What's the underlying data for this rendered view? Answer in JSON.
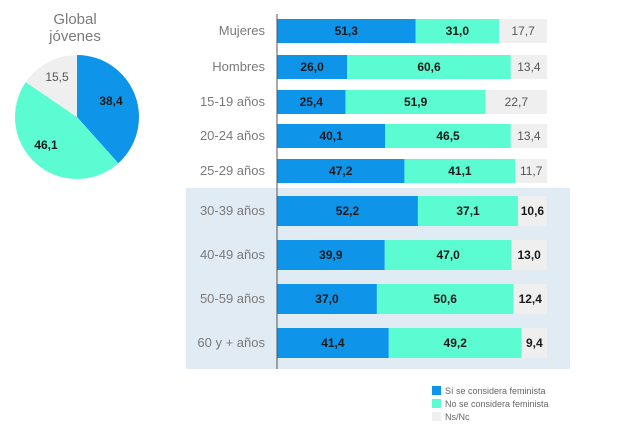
{
  "colors": {
    "si": "#0e95ea",
    "no": "#5bfcd1",
    "ns": "#efefef",
    "band": "#e1ebf4"
  },
  "chart_data": [
    {
      "type": "pie",
      "title": "Global jóvenes",
      "title_lines": [
        "Global",
        "jóvenes"
      ],
      "slices": [
        {
          "series": "Sí se considera feminista",
          "value": 38.4,
          "label": "38,4"
        },
        {
          "series": "No se considera feminista",
          "value": 46.1,
          "label": "46,1"
        },
        {
          "series": "Ns/Nc",
          "value": 15.5,
          "label": "15,5"
        }
      ]
    },
    {
      "type": "bar",
      "orientation": "horizontal",
      "stacked": true,
      "percent": true,
      "categories": [
        "Mujeres",
        "Hombres",
        "15-19 años",
        "20-24 años",
        "25-29 años",
        "30-39 años",
        "40-49 años",
        "50-59 años",
        "60 y + años"
      ],
      "highlighted_categories": [
        "30-39 años",
        "40-49 años",
        "50-59 años",
        "60 y + años"
      ],
      "series": [
        {
          "name": "Sí se considera feminista",
          "values": [
            51.3,
            26.0,
            25.4,
            40.1,
            47.2,
            52.2,
            39.9,
            37.0,
            41.4
          ],
          "labels": [
            "51,3",
            "26,0",
            "25,4",
            "40,1",
            "47,2",
            "52,2",
            "39,9",
            "37,0",
            "41,4"
          ]
        },
        {
          "name": "No se considera feminista",
          "values": [
            31.0,
            60.6,
            51.9,
            46.5,
            41.1,
            37.1,
            47.0,
            50.6,
            49.2
          ],
          "labels": [
            "31,0",
            "60,6",
            "51,9",
            "46,5",
            "41,1",
            "37,1",
            "47,0",
            "50,6",
            "49,2"
          ]
        },
        {
          "name": "Ns/Nc",
          "values": [
            17.7,
            13.4,
            22.7,
            13.4,
            11.7,
            10.6,
            13.0,
            12.4,
            9.4
          ],
          "labels": [
            "17,7",
            "13,4",
            "22,7",
            "13,4",
            "11,7",
            "10,6",
            "13,0",
            "12,4",
            "9,4"
          ]
        }
      ],
      "legend": {
        "position": "bottom-right",
        "items": [
          "Sí se considera feminista",
          "No se considera feminista",
          "Ns/Nc"
        ]
      }
    }
  ]
}
